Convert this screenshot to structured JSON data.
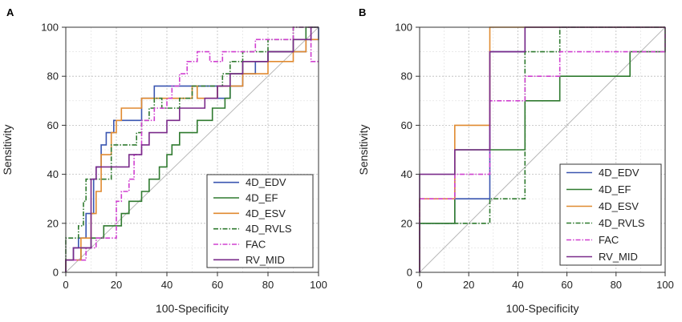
{
  "chart_data": [
    {
      "panel_label": "A",
      "type": "line",
      "xlabel": "100-Specificity",
      "ylabel": "Sensitivity",
      "xlim": [
        0,
        100
      ],
      "ylim": [
        0,
        100
      ],
      "xticks": [
        0,
        20,
        40,
        60,
        80,
        100
      ],
      "yticks": [
        0,
        20,
        40,
        60,
        80,
        100
      ],
      "grid": true,
      "legend_position": "bottom-right",
      "diagonal_reference": true,
      "series": [
        {
          "name": "4D_EDV",
          "color": "#3a56b0",
          "dash": "solid",
          "x": [
            0,
            0,
            3,
            3,
            5,
            5,
            8,
            8,
            11,
            11,
            12,
            12,
            14,
            14,
            16,
            16,
            19,
            19,
            30,
            30,
            35,
            35,
            60,
            60,
            65,
            65,
            70,
            70,
            75,
            75,
            80,
            80,
            95,
            95,
            100,
            100
          ],
          "y": [
            0,
            5,
            5,
            10,
            10,
            14,
            14,
            24,
            24,
            38,
            38,
            43,
            43,
            52,
            52,
            57,
            57,
            62,
            62,
            71,
            71,
            76,
            76,
            71,
            71,
            76,
            76,
            81,
            81,
            86,
            86,
            90,
            90,
            95,
            95,
            100
          ]
        },
        {
          "name": "4D_EF",
          "color": "#2f7a2f",
          "dash": "solid",
          "x": [
            0,
            0,
            6,
            6,
            10,
            10,
            15,
            15,
            22,
            22,
            25,
            25,
            30,
            30,
            33,
            33,
            37,
            37,
            40,
            40,
            42,
            42,
            45,
            45,
            52,
            52,
            58,
            58,
            63,
            63,
            65,
            65,
            70,
            70,
            80,
            80,
            90,
            90,
            95,
            95,
            100
          ],
          "y": [
            0,
            5,
            5,
            10,
            10,
            14,
            14,
            19,
            19,
            24,
            24,
            29,
            29,
            33,
            33,
            38,
            38,
            43,
            43,
            48,
            48,
            52,
            52,
            57,
            57,
            62,
            62,
            67,
            67,
            71,
            71,
            81,
            81,
            86,
            86,
            90,
            90,
            95,
            95,
            100,
            100
          ]
        },
        {
          "name": "4D_ESV",
          "color": "#e08a30",
          "dash": "solid",
          "x": [
            0,
            0,
            6,
            6,
            10,
            10,
            12,
            12,
            14,
            14,
            18,
            18,
            20,
            20,
            22,
            22,
            30,
            30,
            50,
            50,
            52,
            52,
            60,
            60,
            70,
            70,
            80,
            80,
            90,
            90,
            95,
            95,
            100
          ],
          "y": [
            0,
            5,
            5,
            14,
            14,
            24,
            24,
            33,
            33,
            48,
            48,
            57,
            57,
            62,
            62,
            67,
            67,
            71,
            71,
            76,
            76,
            71,
            71,
            76,
            76,
            81,
            81,
            86,
            86,
            90,
            90,
            95,
            95
          ]
        },
        {
          "name": "4D_RVLS",
          "color": "#2f7a2f",
          "dash": "dashdot",
          "x": [
            0,
            0,
            5,
            5,
            7,
            7,
            8,
            8,
            18,
            18,
            28,
            28,
            30,
            30,
            33,
            33,
            35,
            35,
            38,
            38,
            45,
            45,
            50,
            50,
            62,
            62,
            65,
            65,
            70,
            70,
            80,
            80,
            90,
            90,
            100
          ],
          "y": [
            0,
            14,
            14,
            19,
            19,
            29,
            29,
            38,
            38,
            52,
            52,
            57,
            57,
            62,
            62,
            67,
            67,
            71,
            71,
            67,
            67,
            71,
            71,
            76,
            76,
            81,
            81,
            86,
            86,
            90,
            90,
            95,
            95,
            100,
            100
          ]
        },
        {
          "name": "FAC",
          "color": "#d040d0",
          "dash": "dashdot",
          "x": [
            0,
            0,
            8,
            8,
            12,
            12,
            20,
            20,
            22,
            22,
            25,
            25,
            27,
            27,
            30,
            30,
            35,
            35,
            40,
            40,
            42,
            42,
            45,
            45,
            48,
            48,
            52,
            52,
            57,
            57,
            62,
            62,
            75,
            75,
            90,
            90,
            97,
            97,
            100
          ],
          "y": [
            0,
            5,
            5,
            10,
            10,
            14,
            14,
            29,
            29,
            33,
            33,
            38,
            38,
            48,
            48,
            62,
            62,
            67,
            67,
            71,
            71,
            76,
            76,
            81,
            81,
            86,
            86,
            90,
            90,
            86,
            86,
            90,
            90,
            95,
            95,
            100,
            100,
            86,
            86
          ]
        },
        {
          "name": "RV_MID",
          "color": "#7a2a8a",
          "dash": "solid",
          "x": [
            0,
            0,
            3,
            3,
            10,
            10,
            12,
            12,
            25,
            25,
            30,
            30,
            33,
            33,
            40,
            40,
            45,
            45,
            55,
            55,
            60,
            60,
            65,
            65,
            70,
            70,
            80,
            80,
            90,
            90,
            97,
            97,
            100
          ],
          "y": [
            0,
            5,
            5,
            10,
            10,
            38,
            38,
            43,
            43,
            48,
            48,
            52,
            52,
            57,
            57,
            62,
            62,
            67,
            67,
            71,
            71,
            76,
            76,
            81,
            81,
            86,
            86,
            90,
            90,
            95,
            95,
            100,
            100
          ]
        }
      ]
    },
    {
      "panel_label": "B",
      "type": "line",
      "xlabel": "100-Specificity",
      "ylabel": "Sensitivity",
      "xlim": [
        0,
        100
      ],
      "ylim": [
        0,
        100
      ],
      "xticks": [
        0,
        20,
        40,
        60,
        80,
        100
      ],
      "yticks": [
        0,
        20,
        40,
        60,
        80,
        100
      ],
      "grid": true,
      "legend_position": "bottom-right",
      "diagonal_reference": true,
      "series": [
        {
          "name": "4D_EDV",
          "color": "#3a56b0",
          "dash": "solid",
          "x": [
            0,
            0,
            14.3,
            14.3,
            28.6,
            28.6,
            42.9,
            42.9,
            100,
            100
          ],
          "y": [
            0,
            20,
            20,
            30,
            30,
            90,
            90,
            100,
            100,
            100
          ]
        },
        {
          "name": "4D_EF",
          "color": "#2f7a2f",
          "dash": "solid",
          "x": [
            0,
            0,
            14.3,
            14.3,
            42.9,
            42.9,
            57.1,
            57.1,
            85.7,
            85.7,
            100,
            100
          ],
          "y": [
            0,
            20,
            20,
            50,
            50,
            70,
            70,
            80,
            80,
            90,
            90,
            100
          ]
        },
        {
          "name": "4D_ESV",
          "color": "#e08a30",
          "dash": "solid",
          "x": [
            0,
            0,
            14.3,
            14.3,
            28.6,
            28.6,
            42.9,
            42.9,
            100
          ],
          "y": [
            0,
            30,
            30,
            60,
            60,
            100,
            100,
            100,
            100
          ]
        },
        {
          "name": "4D_RVLS",
          "color": "#2f7a2f",
          "dash": "dashdot",
          "x": [
            0,
            0,
            28.6,
            28.6,
            42.9,
            42.9,
            57.1,
            57.1,
            100
          ],
          "y": [
            0,
            20,
            20,
            30,
            30,
            90,
            90,
            100,
            100
          ]
        },
        {
          "name": "FAC",
          "color": "#d040d0",
          "dash": "dashdot",
          "x": [
            0,
            0,
            14.3,
            14.3,
            28.6,
            28.6,
            42.9,
            42.9,
            57.1,
            57.1,
            100,
            100
          ],
          "y": [
            0,
            30,
            30,
            40,
            40,
            70,
            70,
            80,
            80,
            90,
            90,
            100
          ]
        },
        {
          "name": "RV_MID",
          "color": "#7a2a8a",
          "dash": "solid",
          "x": [
            0,
            0,
            14.3,
            14.3,
            28.6,
            28.6,
            42.9,
            42.9,
            100,
            100
          ],
          "y": [
            0,
            40,
            40,
            50,
            50,
            90,
            90,
            100,
            100,
            100
          ]
        }
      ]
    }
  ]
}
